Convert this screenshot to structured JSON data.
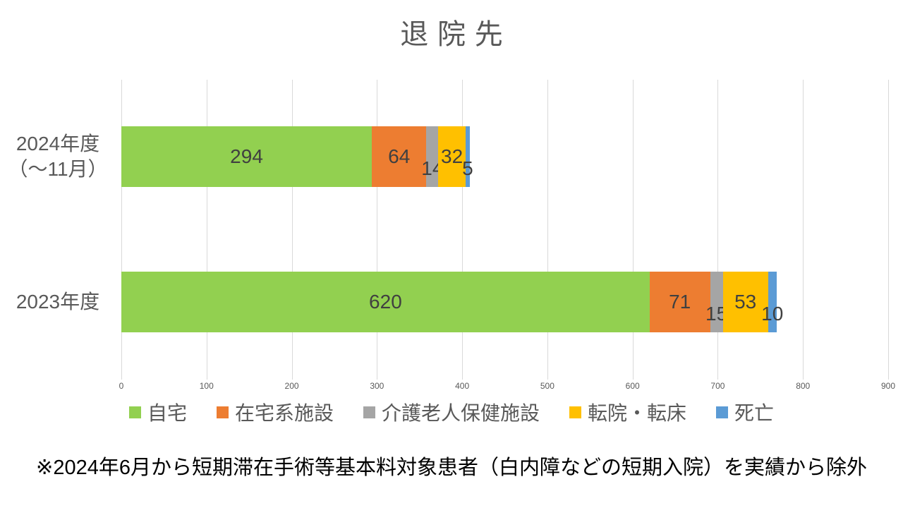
{
  "title": "退院先",
  "footnote": "※2024年6月から短期滞在手術等基本料対象患者（白内障などの短期入院）を実績から除外",
  "colors": {
    "home": "#92D050",
    "home_facility": "#ED7D31",
    "geriatric_facility": "#A5A5A5",
    "transfer": "#FFC000",
    "death": "#5B9BD5",
    "gridline": "#D9D9D9",
    "title_text": "#595959",
    "data_label_text": "#404040"
  },
  "chart_data": {
    "type": "bar",
    "orientation": "horizontal",
    "stacked": true,
    "title": "退院先",
    "categories": [
      "2024年度\n（～11月）",
      "2023年度"
    ],
    "series": [
      {
        "name": "自宅",
        "color": "#92D050",
        "values": [
          294,
          620
        ]
      },
      {
        "name": "在宅系施設",
        "color": "#ED7D31",
        "values": [
          64,
          71
        ]
      },
      {
        "name": "介護老人保健施設",
        "color": "#A5A5A5",
        "values": [
          14,
          15
        ]
      },
      {
        "name": "転院・転床",
        "color": "#FFC000",
        "values": [
          32,
          53
        ]
      },
      {
        "name": "死亡",
        "color": "#5B9BD5",
        "values": [
          5,
          10
        ]
      }
    ],
    "totals": [
      409,
      769
    ],
    "xlim": [
      0,
      900
    ],
    "xticks": [
      0,
      100,
      200,
      300,
      400,
      500,
      600,
      700,
      800,
      900
    ],
    "grid": true,
    "legend_position": "bottom"
  }
}
